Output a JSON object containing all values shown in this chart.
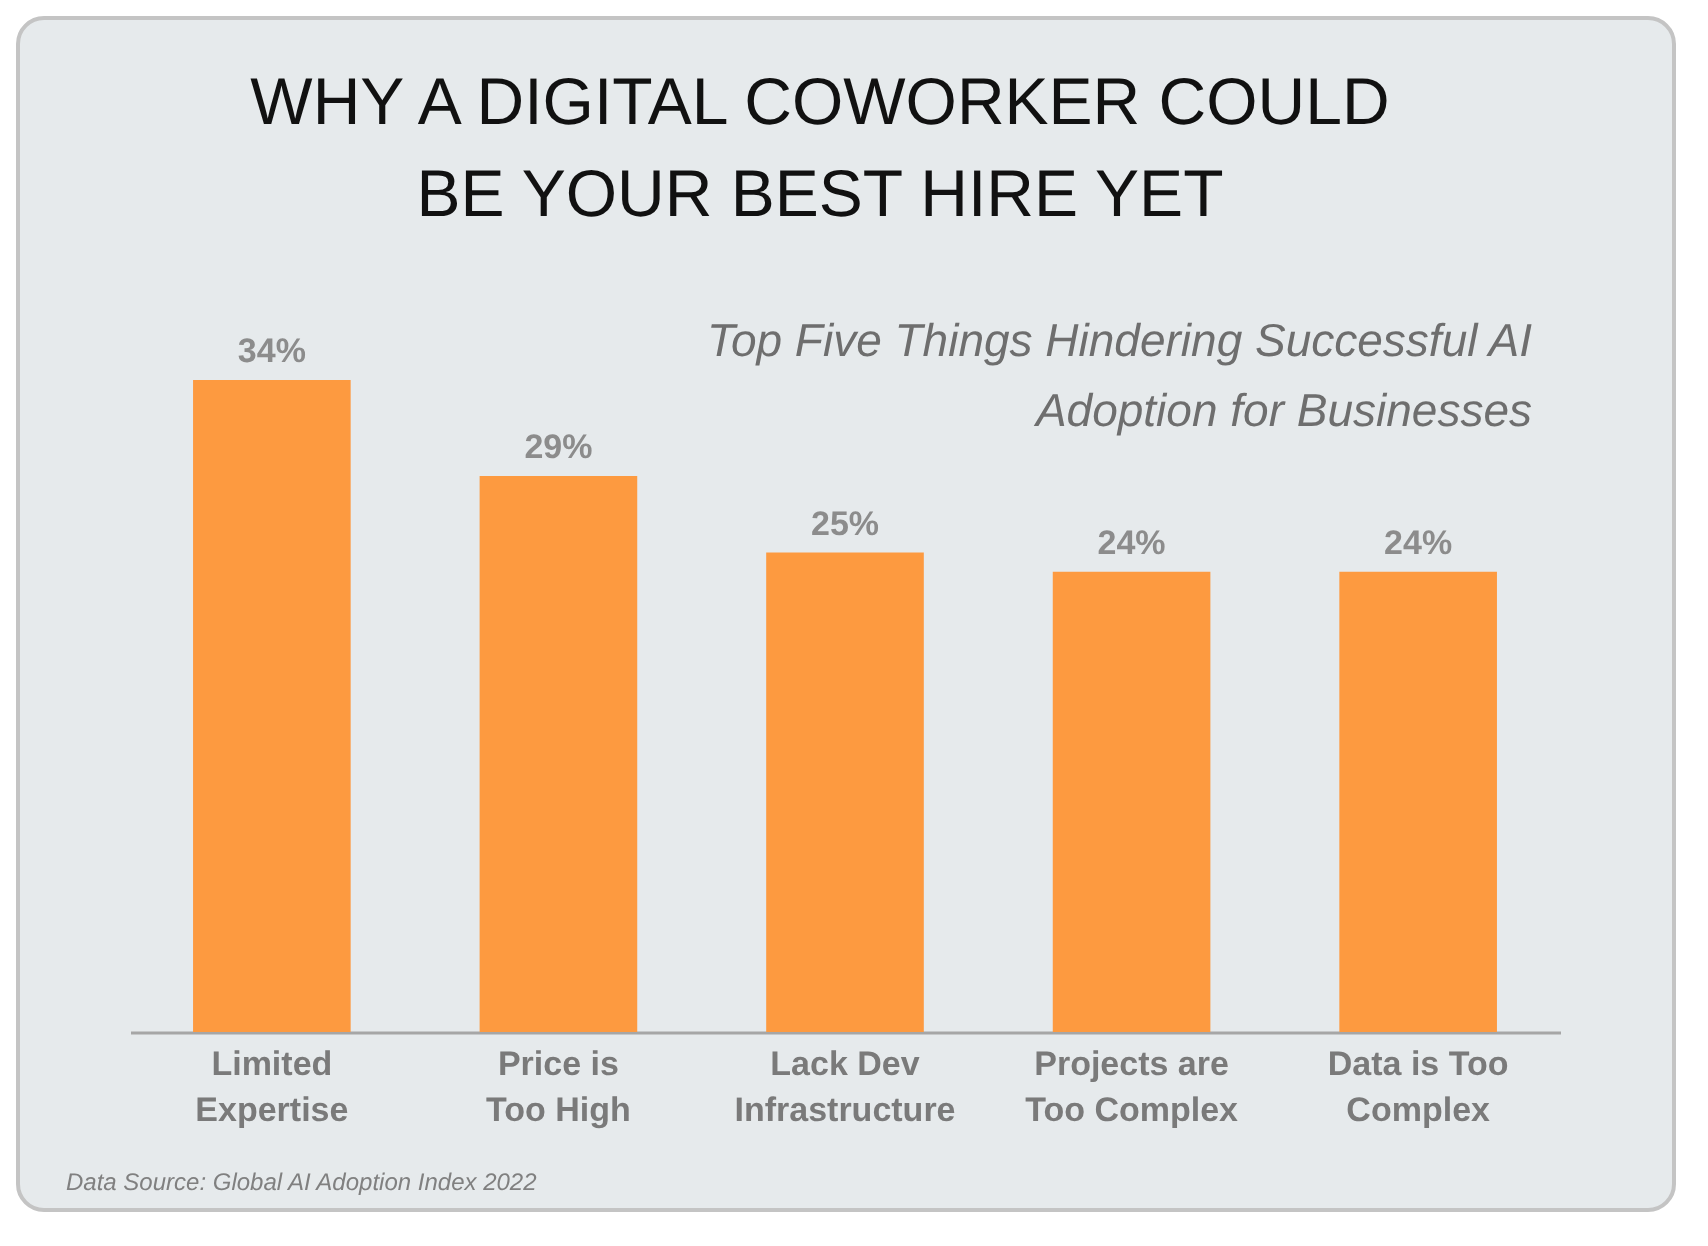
{
  "chart_data": {
    "type": "bar",
    "title": "WHY A DIGITAL COWORKER COULD BE YOUR BEST HIRE YET",
    "subtitle": "Top Five Things Hindering Successful AI Adoption for Businesses",
    "categories": [
      "Limited Expertise",
      "Price is Too High",
      "Lack Dev Infrastructure",
      "Projects are Too Complex",
      "Data is Too Complex"
    ],
    "values": [
      34,
      29,
      25,
      24,
      24
    ],
    "value_labels": [
      "34%",
      "29%",
      "25%",
      "24%",
      "24%"
    ],
    "color": "#fd9a40",
    "annotations": [
      "Data Source: Global AI Adoption Index 2022"
    ]
  }
}
